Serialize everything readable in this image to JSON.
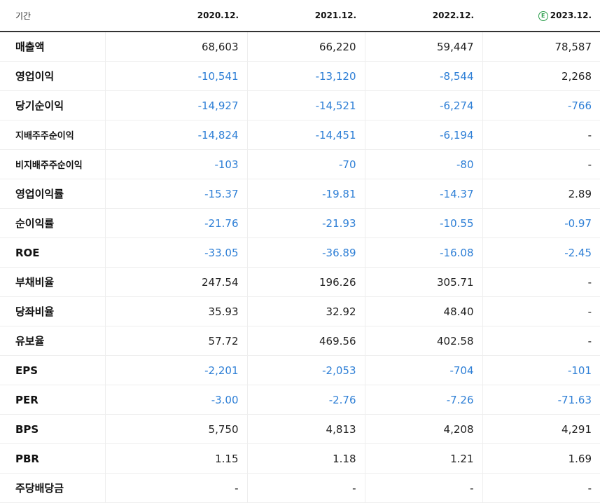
{
  "header": {
    "period_label": "기간",
    "years": [
      "2020.12.",
      "2021.12.",
      "2022.12.",
      "2023.12."
    ],
    "estimate_mark": "E"
  },
  "rows": [
    {
      "label": "매출액",
      "values": [
        "68,603",
        "66,220",
        "59,447",
        "78,587"
      ]
    },
    {
      "label": "영업이익",
      "values": [
        "-10,541",
        "-13,120",
        "-8,544",
        "2,268"
      ]
    },
    {
      "label": "당기순이익",
      "values": [
        "-14,927",
        "-14,521",
        "-6,274",
        "-766"
      ]
    },
    {
      "label": "지배주주순이익",
      "values": [
        "-14,824",
        "-14,451",
        "-6,194",
        "-"
      ]
    },
    {
      "label": "비지배주주순이익",
      "values": [
        "-103",
        "-70",
        "-80",
        "-"
      ]
    },
    {
      "label": "영업이익률",
      "values": [
        "-15.37",
        "-19.81",
        "-14.37",
        "2.89"
      ]
    },
    {
      "label": "순이익률",
      "values": [
        "-21.76",
        "-21.93",
        "-10.55",
        "-0.97"
      ]
    },
    {
      "label": "ROE",
      "values": [
        "-33.05",
        "-36.89",
        "-16.08",
        "-2.45"
      ]
    },
    {
      "label": "부채비율",
      "values": [
        "247.54",
        "196.26",
        "305.71",
        "-"
      ]
    },
    {
      "label": "당좌비율",
      "values": [
        "35.93",
        "32.92",
        "48.40",
        "-"
      ]
    },
    {
      "label": "유보율",
      "values": [
        "57.72",
        "469.56",
        "402.58",
        "-"
      ]
    },
    {
      "label": "EPS",
      "values": [
        "-2,201",
        "-2,053",
        "-704",
        "-101"
      ]
    },
    {
      "label": "PER",
      "values": [
        "-3.00",
        "-2.76",
        "-7.26",
        "-71.63"
      ]
    },
    {
      "label": "BPS",
      "values": [
        "5,750",
        "4,813",
        "4,208",
        "4,291"
      ]
    },
    {
      "label": "PBR",
      "values": [
        "1.15",
        "1.18",
        "1.21",
        "1.69"
      ]
    },
    {
      "label": "주당배당금",
      "values": [
        "-",
        "-",
        "-",
        "-"
      ]
    }
  ]
}
